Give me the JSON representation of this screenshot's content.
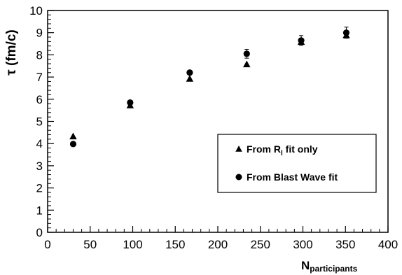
{
  "chart_data": {
    "type": "scatter",
    "xlabel": {
      "main": "N",
      "sub": "participants"
    },
    "ylabel": "τ (fm/c)",
    "xlim": [
      0,
      400
    ],
    "ylim": [
      0,
      10
    ],
    "xticks": [
      0,
      50,
      100,
      150,
      200,
      250,
      300,
      350,
      400
    ],
    "yticks": [
      0,
      1,
      2,
      3,
      4,
      5,
      6,
      7,
      8,
      9,
      10
    ],
    "grid": false,
    "legend_position": "right",
    "series": [
      {
        "name": "From R_l fit only",
        "legend_main": "From   R",
        "legend_sub": "l",
        "legend_tail": " fit only",
        "marker": "triangle",
        "color": "#000000",
        "points": [
          {
            "x": 30,
            "y": 4.32
          },
          {
            "x": 97,
            "y": 5.72
          },
          {
            "x": 167,
            "y": 6.92
          },
          {
            "x": 234,
            "y": 7.57
          },
          {
            "x": 298,
            "y": 8.58
          },
          {
            "x": 351,
            "y": 8.88
          }
        ]
      },
      {
        "name": "From Blast Wave fit",
        "legend_main": "From Blast Wave fit",
        "marker": "circle",
        "color": "#000000",
        "points": [
          {
            "x": 30,
            "y": 3.98,
            "err": 0.05
          },
          {
            "x": 97,
            "y": 5.85,
            "err": 0.07
          },
          {
            "x": 167,
            "y": 7.2,
            "err": 0.1
          },
          {
            "x": 234,
            "y": 8.05,
            "err": 0.2
          },
          {
            "x": 298,
            "y": 8.65,
            "err": 0.22
          },
          {
            "x": 351,
            "y": 9.0,
            "err": 0.25
          }
        ]
      }
    ]
  }
}
